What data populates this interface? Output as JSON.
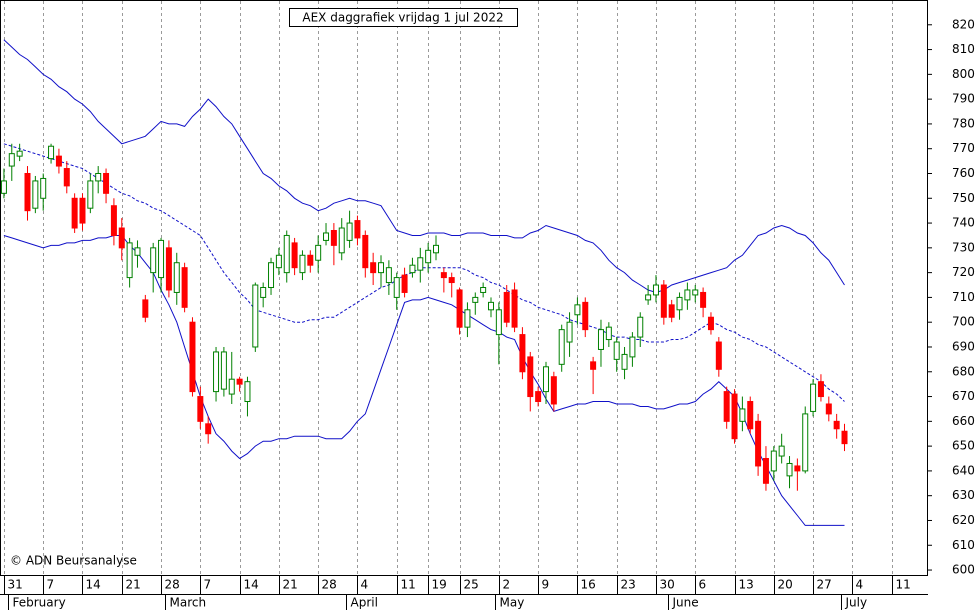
{
  "chart_data": {
    "type": "candlestick",
    "title": "AEX daggrafiek vrijdag 1 jul 2022",
    "credit": "© ADN Beursanalyse",
    "categories": [
      "31",
      null,
      null,
      null,
      null,
      "7",
      null,
      null,
      null,
      null,
      "14",
      null,
      null,
      null,
      null,
      "21",
      null,
      null,
      null,
      null,
      "28",
      null,
      null,
      null,
      null,
      "7",
      null,
      null,
      null,
      null,
      "14",
      null,
      null,
      null,
      null,
      "21",
      null,
      null,
      null,
      null,
      "28",
      null,
      null,
      null,
      null,
      "4",
      null,
      null,
      null,
      null,
      "11",
      null,
      null,
      null,
      "19",
      null,
      null,
      null,
      "25",
      null,
      null,
      null,
      null,
      "2",
      null,
      null,
      null,
      null,
      "9",
      null,
      null,
      null,
      null,
      "16",
      null,
      null,
      null,
      null,
      "23",
      null,
      null,
      null,
      null,
      "30",
      null,
      null,
      null,
      null,
      "6",
      null,
      null,
      null,
      null,
      "13",
      null,
      null,
      null,
      null,
      "20",
      null,
      null,
      null,
      null,
      "27",
      null,
      null,
      null,
      null,
      "4",
      null,
      null,
      null,
      null,
      "11",
      null,
      null,
      null,
      null
    ],
    "months": [
      {
        "value": 1,
        "label": "February"
      },
      {
        "value": 21,
        "label": "March"
      },
      {
        "value": 44,
        "label": "April"
      },
      {
        "value": 63,
        "label": "May"
      },
      {
        "value": 85,
        "label": "June"
      },
      {
        "value": 107,
        "label": "July"
      }
    ],
    "open": [
      752,
      763,
      767,
      760,
      746,
      750,
      766,
      767,
      762,
      750,
      750,
      746,
      757,
      760,
      747,
      738,
      718,
      727,
      709,
      720,
      718,
      730,
      712,
      722,
      700,
      670,
      659,
      672,
      673,
      671,
      677,
      668,
      690,
      710,
      714,
      722,
      720,
      732,
      720,
      727,
      725,
      733,
      737,
      728,
      733,
      741,
      735,
      724,
      720,
      716,
      710,
      719,
      720,
      721,
      724,
      728,
      720,
      718,
      713,
      698,
      708,
      712,
      705,
      695,
      712,
      713,
      695,
      686,
      672,
      672,
      678,
      683,
      692,
      703,
      708,
      684,
      689,
      693,
      685,
      681,
      686,
      694,
      709,
      711,
      715,
      707,
      705,
      709,
      711,
      712,
      702,
      692,
      672,
      671,
      660,
      668,
      660,
      645,
      640,
      646,
      638,
      642,
      640,
      664,
      676,
      667,
      660,
      656,
      null,
      null,
      null,
      null,
      null,
      null,
      null,
      null,
      null,
      null
    ],
    "high": [
      762,
      772,
      772,
      763,
      759,
      760,
      772,
      770,
      765,
      752,
      752,
      760,
      763,
      762,
      750,
      742,
      734,
      733,
      711,
      732,
      734,
      733,
      728,
      724,
      702,
      674,
      662,
      690,
      690,
      688,
      678,
      678,
      716,
      716,
      726,
      730,
      737,
      734,
      729,
      729,
      735,
      740,
      740,
      742,
      745,
      743,
      737,
      728,
      727,
      725,
      720,
      722,
      726,
      730,
      732,
      735,
      722,
      720,
      714,
      708,
      712,
      716,
      710,
      708,
      715,
      716,
      698,
      688,
      674,
      684,
      680,
      699,
      704,
      710,
      710,
      686,
      701,
      700,
      694,
      690,
      696,
      704,
      715,
      719,
      717,
      709,
      712,
      716,
      715,
      714,
      704,
      694,
      674,
      673,
      670,
      670,
      663,
      650,
      650,
      655,
      646,
      645,
      666,
      677,
      679,
      670,
      663,
      659,
      null,
      null,
      null,
      null,
      null,
      null,
      null,
      null,
      null,
      null
    ],
    "low": [
      750,
      757,
      765,
      741,
      744,
      745,
      764,
      760,
      752,
      736,
      737,
      744,
      752,
      748,
      731,
      725,
      714,
      722,
      700,
      712,
      712,
      710,
      707,
      704,
      670,
      657,
      651,
      668,
      670,
      667,
      672,
      662,
      688,
      706,
      711,
      719,
      716,
      719,
      717,
      720,
      720,
      731,
      723,
      725,
      730,
      731,
      718,
      715,
      714,
      711,
      705,
      710,
      718,
      716,
      720,
      725,
      712,
      710,
      695,
      694,
      703,
      710,
      702,
      683,
      698,
      696,
      677,
      664,
      666,
      667,
      664,
      680,
      686,
      699,
      694,
      671,
      682,
      690,
      680,
      677,
      682,
      690,
      707,
      708,
      699,
      700,
      701,
      705,
      708,
      702,
      695,
      678,
      657,
      651,
      656,
      655,
      638,
      632,
      636,
      643,
      633,
      632,
      639,
      662,
      668,
      660,
      653,
      648,
      null,
      null,
      null,
      null,
      null,
      null,
      null,
      null,
      null,
      null
    ],
    "close": [
      757,
      768,
      769,
      745,
      757,
      758,
      771,
      763,
      755,
      738,
      740,
      757,
      760,
      752,
      735,
      730,
      732,
      730,
      702,
      730,
      733,
      713,
      724,
      706,
      672,
      660,
      655,
      688,
      688,
      677,
      675,
      676,
      715,
      714,
      724,
      727,
      735,
      722,
      727,
      723,
      731,
      736,
      731,
      738,
      740,
      734,
      722,
      720,
      724,
      722,
      718,
      712,
      723,
      726,
      729,
      731,
      718,
      716,
      698,
      705,
      710,
      714,
      708,
      705,
      700,
      698,
      680,
      670,
      668,
      682,
      667,
      697,
      700,
      707,
      697,
      681,
      697,
      698,
      692,
      687,
      694,
      702,
      711,
      715,
      702,
      702,
      710,
      713,
      713,
      706,
      697,
      681,
      660,
      653,
      665,
      657,
      642,
      635,
      648,
      650,
      643,
      640,
      663,
      675,
      670,
      663,
      657,
      651,
      null,
      null,
      null,
      null,
      null,
      null,
      null,
      null,
      null,
      null
    ],
    "bands": {
      "color": "#1010c8",
      "upper": [
        814,
        811,
        808,
        806,
        803,
        800,
        798,
        795,
        793,
        790,
        788,
        785,
        781,
        778,
        775,
        772,
        773,
        774,
        775,
        778,
        781,
        780,
        780,
        779,
        783,
        786,
        790,
        787,
        783,
        780,
        775,
        770,
        765,
        760,
        758,
        755,
        753,
        750,
        748,
        747,
        745,
        746,
        748,
        749,
        750,
        749,
        749,
        748,
        747,
        742,
        737,
        736,
        735,
        735,
        736,
        736,
        736,
        735,
        735,
        736,
        736,
        736,
        735,
        735,
        735,
        734,
        734,
        736,
        737,
        739,
        738,
        737,
        736,
        735,
        733,
        732,
        729,
        725,
        722,
        720,
        717,
        715,
        713,
        712,
        713,
        715,
        716,
        717,
        718,
        719,
        720,
        721,
        722,
        725,
        727,
        731,
        735,
        736,
        738,
        739,
        738,
        736,
        735,
        732,
        728,
        725,
        720,
        715,
        null,
        null,
        null,
        null,
        null,
        null,
        null,
        null,
        null,
        null
      ],
      "middle": [
        772,
        771,
        770,
        769,
        768,
        767,
        766,
        765,
        764,
        763,
        762,
        760,
        758,
        756,
        754,
        752,
        751,
        749,
        748,
        746,
        745,
        743,
        741,
        739,
        737,
        735,
        730,
        725,
        720,
        716,
        712,
        709,
        705,
        704,
        703,
        702,
        701,
        700,
        700,
        701,
        701,
        702,
        702,
        704,
        706,
        708,
        710,
        712,
        714,
        715,
        717,
        719,
        720,
        722,
        722,
        722,
        722,
        722,
        722,
        721,
        719,
        718,
        716,
        715,
        713,
        711,
        709,
        708,
        706,
        705,
        704,
        703,
        701,
        700,
        699,
        698,
        697,
        695,
        694,
        694,
        693,
        693,
        692,
        692,
        692,
        693,
        693,
        694,
        696,
        698,
        700,
        699,
        697,
        696,
        694,
        693,
        691,
        690,
        688,
        686,
        684,
        682,
        680,
        678,
        676,
        673,
        671,
        668,
        null,
        null,
        null,
        null,
        null,
        null,
        null,
        null,
        null,
        null
      ],
      "lower": [
        735,
        734,
        733,
        732,
        731,
        730,
        731,
        731,
        732,
        732,
        733,
        733,
        734,
        734,
        735,
        735,
        731,
        728,
        724,
        720,
        713,
        707,
        700,
        690,
        680,
        670,
        662,
        655,
        652,
        648,
        645,
        647,
        650,
        652,
        652,
        653,
        653,
        654,
        654,
        654,
        654,
        653,
        653,
        653,
        656,
        660,
        663,
        672,
        681,
        690,
        699,
        708,
        709,
        709,
        710,
        709,
        708,
        707,
        705,
        703,
        701,
        699,
        697,
        696,
        694,
        693,
        686,
        680,
        675,
        669,
        664,
        665,
        666,
        667,
        667,
        668,
        668,
        668,
        667,
        667,
        667,
        666,
        666,
        665,
        665,
        666,
        667,
        667,
        668,
        671,
        673,
        676,
        673,
        670,
        663,
        655,
        648,
        642,
        636,
        630,
        626,
        622,
        618,
        618,
        618,
        618,
        618,
        618,
        null,
        null,
        null,
        null,
        null,
        null,
        null,
        null,
        null,
        null
      ]
    },
    "up_color": "#008000",
    "down_color": "#ff0000",
    "grid": true,
    "ylim": [
      598,
      830
    ],
    "yticks": [
      600,
      610,
      620,
      630,
      640,
      650,
      660,
      670,
      680,
      690,
      700,
      710,
      720,
      730,
      740,
      750,
      760,
      770,
      780,
      790,
      800,
      810,
      820
    ]
  }
}
